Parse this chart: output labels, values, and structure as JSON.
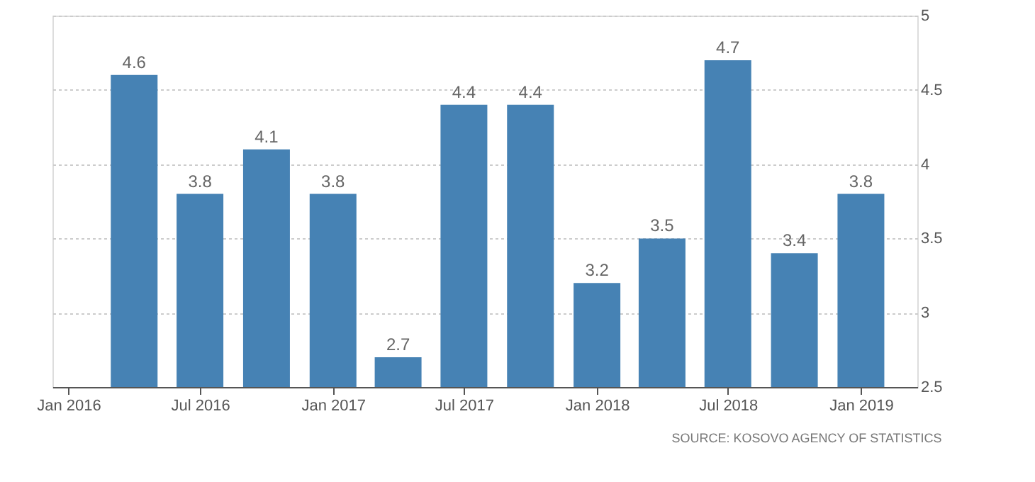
{
  "chart_data": {
    "type": "bar",
    "x": [
      "2016-04-01",
      "2016-07-01",
      "2016-10-01",
      "2017-01-01",
      "2017-04-01",
      "2017-07-01",
      "2017-10-01",
      "2018-01-01",
      "2018-04-01",
      "2018-07-01",
      "2018-10-01",
      "2019-01-01"
    ],
    "values": [
      4.6,
      3.8,
      4.1,
      3.8,
      2.7,
      4.4,
      4.4,
      3.2,
      3.5,
      4.7,
      3.4,
      3.8
    ],
    "color": "#4682b4",
    "data_labels": true,
    "ylim": [
      2.5,
      5
    ],
    "yticks": [
      2.5,
      3,
      3.5,
      4,
      4.5,
      5
    ],
    "xlim": [
      "2015-12-10",
      "2019-03-20"
    ],
    "xticks": [
      {
        "value": "2016-01-01",
        "label": "Jan 2016"
      },
      {
        "value": "2016-07-01",
        "label": "Jul 2016"
      },
      {
        "value": "2017-01-01",
        "label": "Jan 2017"
      },
      {
        "value": "2017-07-01",
        "label": "Jul 2017"
      },
      {
        "value": "2018-01-01",
        "label": "Jan 2018"
      },
      {
        "value": "2018-07-01",
        "label": "Jul 2018"
      },
      {
        "value": "2019-01-01",
        "label": "Jan 2019"
      }
    ],
    "grid": "y",
    "annotations": [
      "SOURCE: KOSOVO AGENCY OF STATISTICS"
    ]
  }
}
